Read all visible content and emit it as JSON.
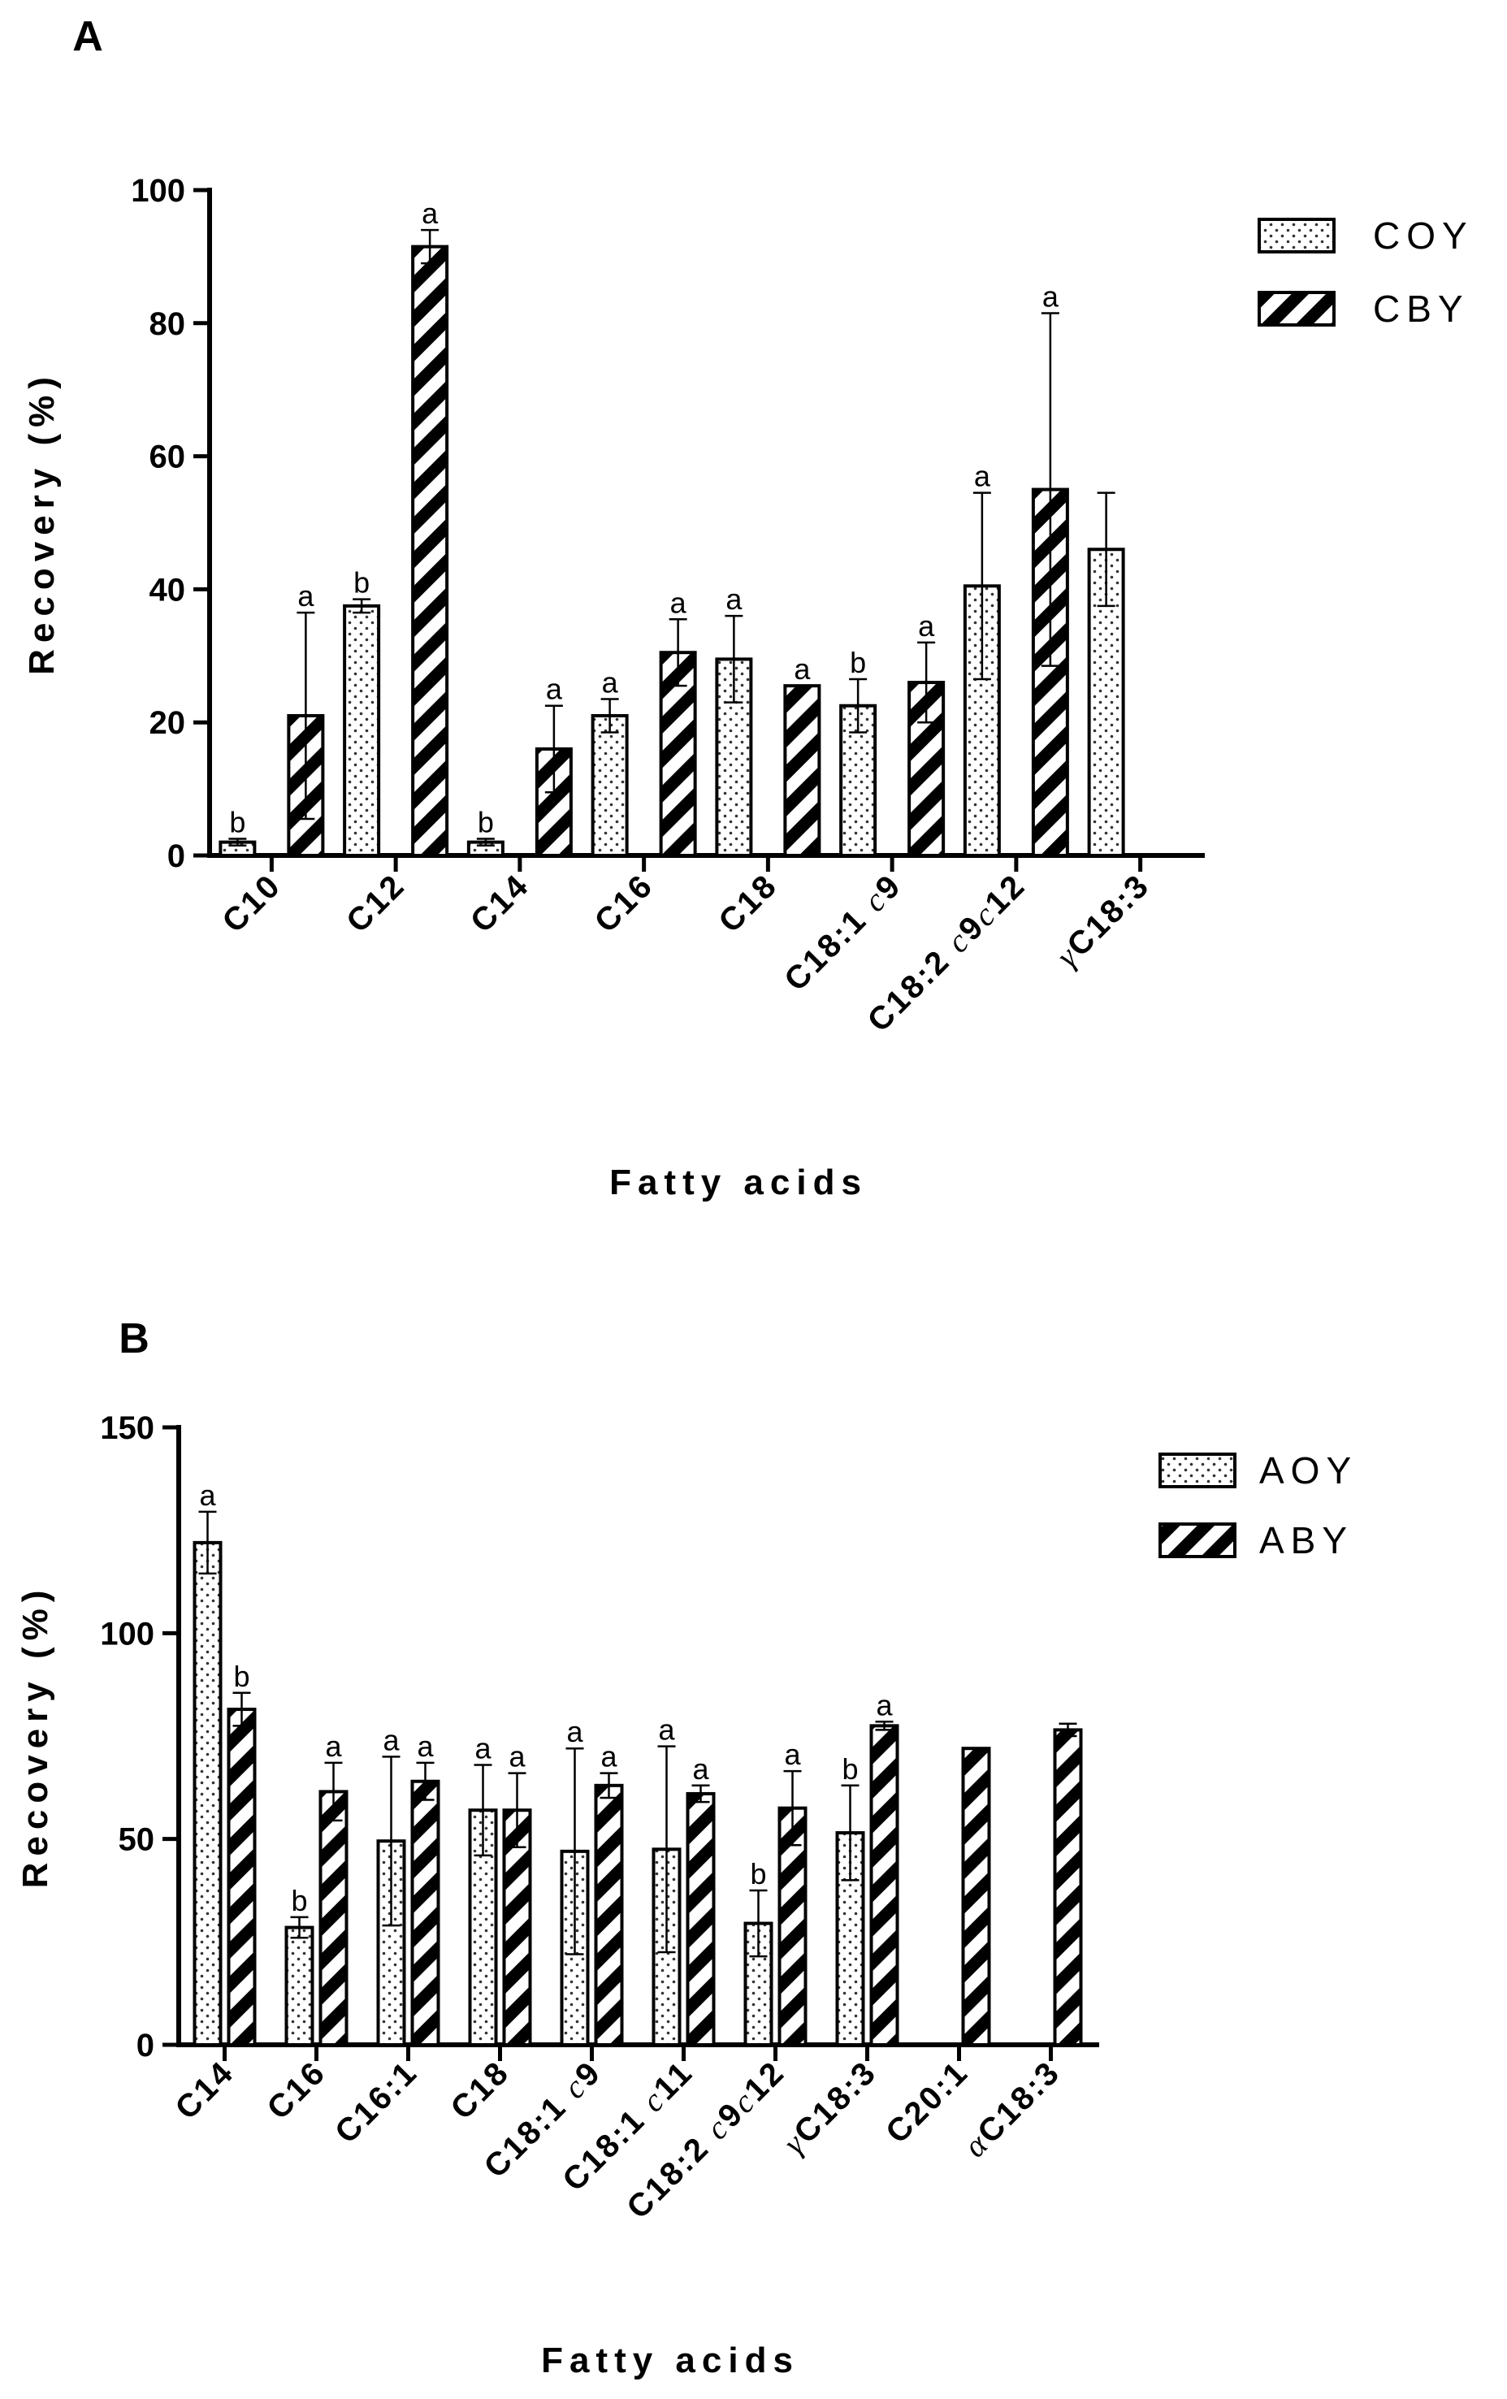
{
  "chart_data": [
    {
      "type": "bar",
      "panel_label": "A",
      "xlabel": "Fatty acids",
      "ylabel": "Recovery (%)",
      "ylim": [
        0,
        100
      ],
      "yticks": [
        "0",
        "20",
        "40",
        "60",
        "80",
        "100"
      ],
      "categories": [
        "C10",
        "C12",
        "C14",
        "C16",
        "C18",
        "C18:1 c9",
        "C18:2 c9c12",
        "γC18:3"
      ],
      "category_parts": [
        [
          [
            "C10",
            false
          ]
        ],
        [
          [
            "C12",
            false
          ]
        ],
        [
          [
            "C14",
            false
          ]
        ],
        [
          [
            "C16",
            false
          ]
        ],
        [
          [
            "C18",
            false
          ]
        ],
        [
          [
            "C18:1 ",
            false
          ],
          [
            "c",
            true
          ],
          [
            "9",
            false
          ]
        ],
        [
          [
            "C18:2 ",
            false
          ],
          [
            "c",
            true
          ],
          [
            "9",
            false
          ],
          [
            "c",
            true
          ],
          [
            "12",
            false
          ]
        ],
        [
          [
            "γ",
            true
          ],
          [
            "C18:3",
            false
          ]
        ]
      ],
      "legend_position": "top-right",
      "series": [
        {
          "name": "COY",
          "pattern": "dots",
          "values": [
            2,
            37.5,
            2,
            21,
            29.5,
            22.5,
            40.5,
            46
          ],
          "errors": [
            0.5,
            1,
            0.5,
            2.5,
            6.5,
            4,
            14,
            8.5
          ],
          "letters": [
            "b",
            "b",
            "b",
            "a",
            "a",
            "b",
            "a",
            ""
          ]
        },
        {
          "name": "CBY",
          "pattern": "stripes",
          "values": [
            21,
            91.5,
            16,
            30.5,
            25.5,
            26,
            55,
            null
          ],
          "errors": [
            15.5,
            2.5,
            6.5,
            5,
            0,
            6,
            26.5,
            null
          ],
          "letters": [
            "a",
            "a",
            "a",
            "a",
            "a",
            "a",
            "a",
            ""
          ]
        }
      ]
    },
    {
      "type": "bar",
      "panel_label": "B",
      "xlabel": "Fatty acids",
      "ylabel": "Recovery (%)",
      "ylim": [
        0,
        150
      ],
      "yticks": [
        "0",
        "50",
        "100",
        "150"
      ],
      "categories": [
        "C14",
        "C16",
        "C16:1",
        "C18",
        "C18:1 c9",
        "C18:1 c11",
        "C18:2 c9c12",
        "γC18:3",
        "C20:1",
        "αC18:3"
      ],
      "category_parts": [
        [
          [
            "C14",
            false
          ]
        ],
        [
          [
            "C16",
            false
          ]
        ],
        [
          [
            "C16:1",
            false
          ]
        ],
        [
          [
            "C18",
            false
          ]
        ],
        [
          [
            "C18:1 ",
            false
          ],
          [
            "c",
            true
          ],
          [
            "9",
            false
          ]
        ],
        [
          [
            "C18:1 ",
            false
          ],
          [
            "c",
            true
          ],
          [
            "11",
            false
          ]
        ],
        [
          [
            "C18:2 ",
            false
          ],
          [
            "c",
            true
          ],
          [
            "9",
            false
          ],
          [
            "c",
            true
          ],
          [
            "12",
            false
          ]
        ],
        [
          [
            "γ",
            true
          ],
          [
            "C18:3",
            false
          ]
        ],
        [
          [
            "C20:1",
            false
          ]
        ],
        [
          [
            "α",
            true
          ],
          [
            "C18:3",
            false
          ]
        ]
      ],
      "legend_position": "top-right",
      "series": [
        {
          "name": "AOY",
          "pattern": "dots",
          "values": [
            122,
            28.5,
            49.5,
            57,
            47,
            47.5,
            29.5,
            51.5,
            null,
            null
          ],
          "errors": [
            7.5,
            2.5,
            20.5,
            11,
            25,
            25,
            8,
            11.5,
            null,
            null
          ],
          "letters": [
            "a",
            "b",
            "a",
            "a",
            "a",
            "a",
            "b",
            "b",
            "",
            ""
          ]
        },
        {
          "name": "ABY",
          "pattern": "stripes",
          "values": [
            81.5,
            61.5,
            64,
            57,
            63,
            61,
            57.5,
            77.5,
            72,
            76.5
          ],
          "errors": [
            4,
            7,
            4.5,
            9,
            3,
            2,
            9,
            1,
            0,
            1.5
          ],
          "letters": [
            "b",
            "a",
            "a",
            "a",
            "a",
            "a",
            "a",
            "a",
            "",
            ""
          ]
        }
      ]
    }
  ]
}
